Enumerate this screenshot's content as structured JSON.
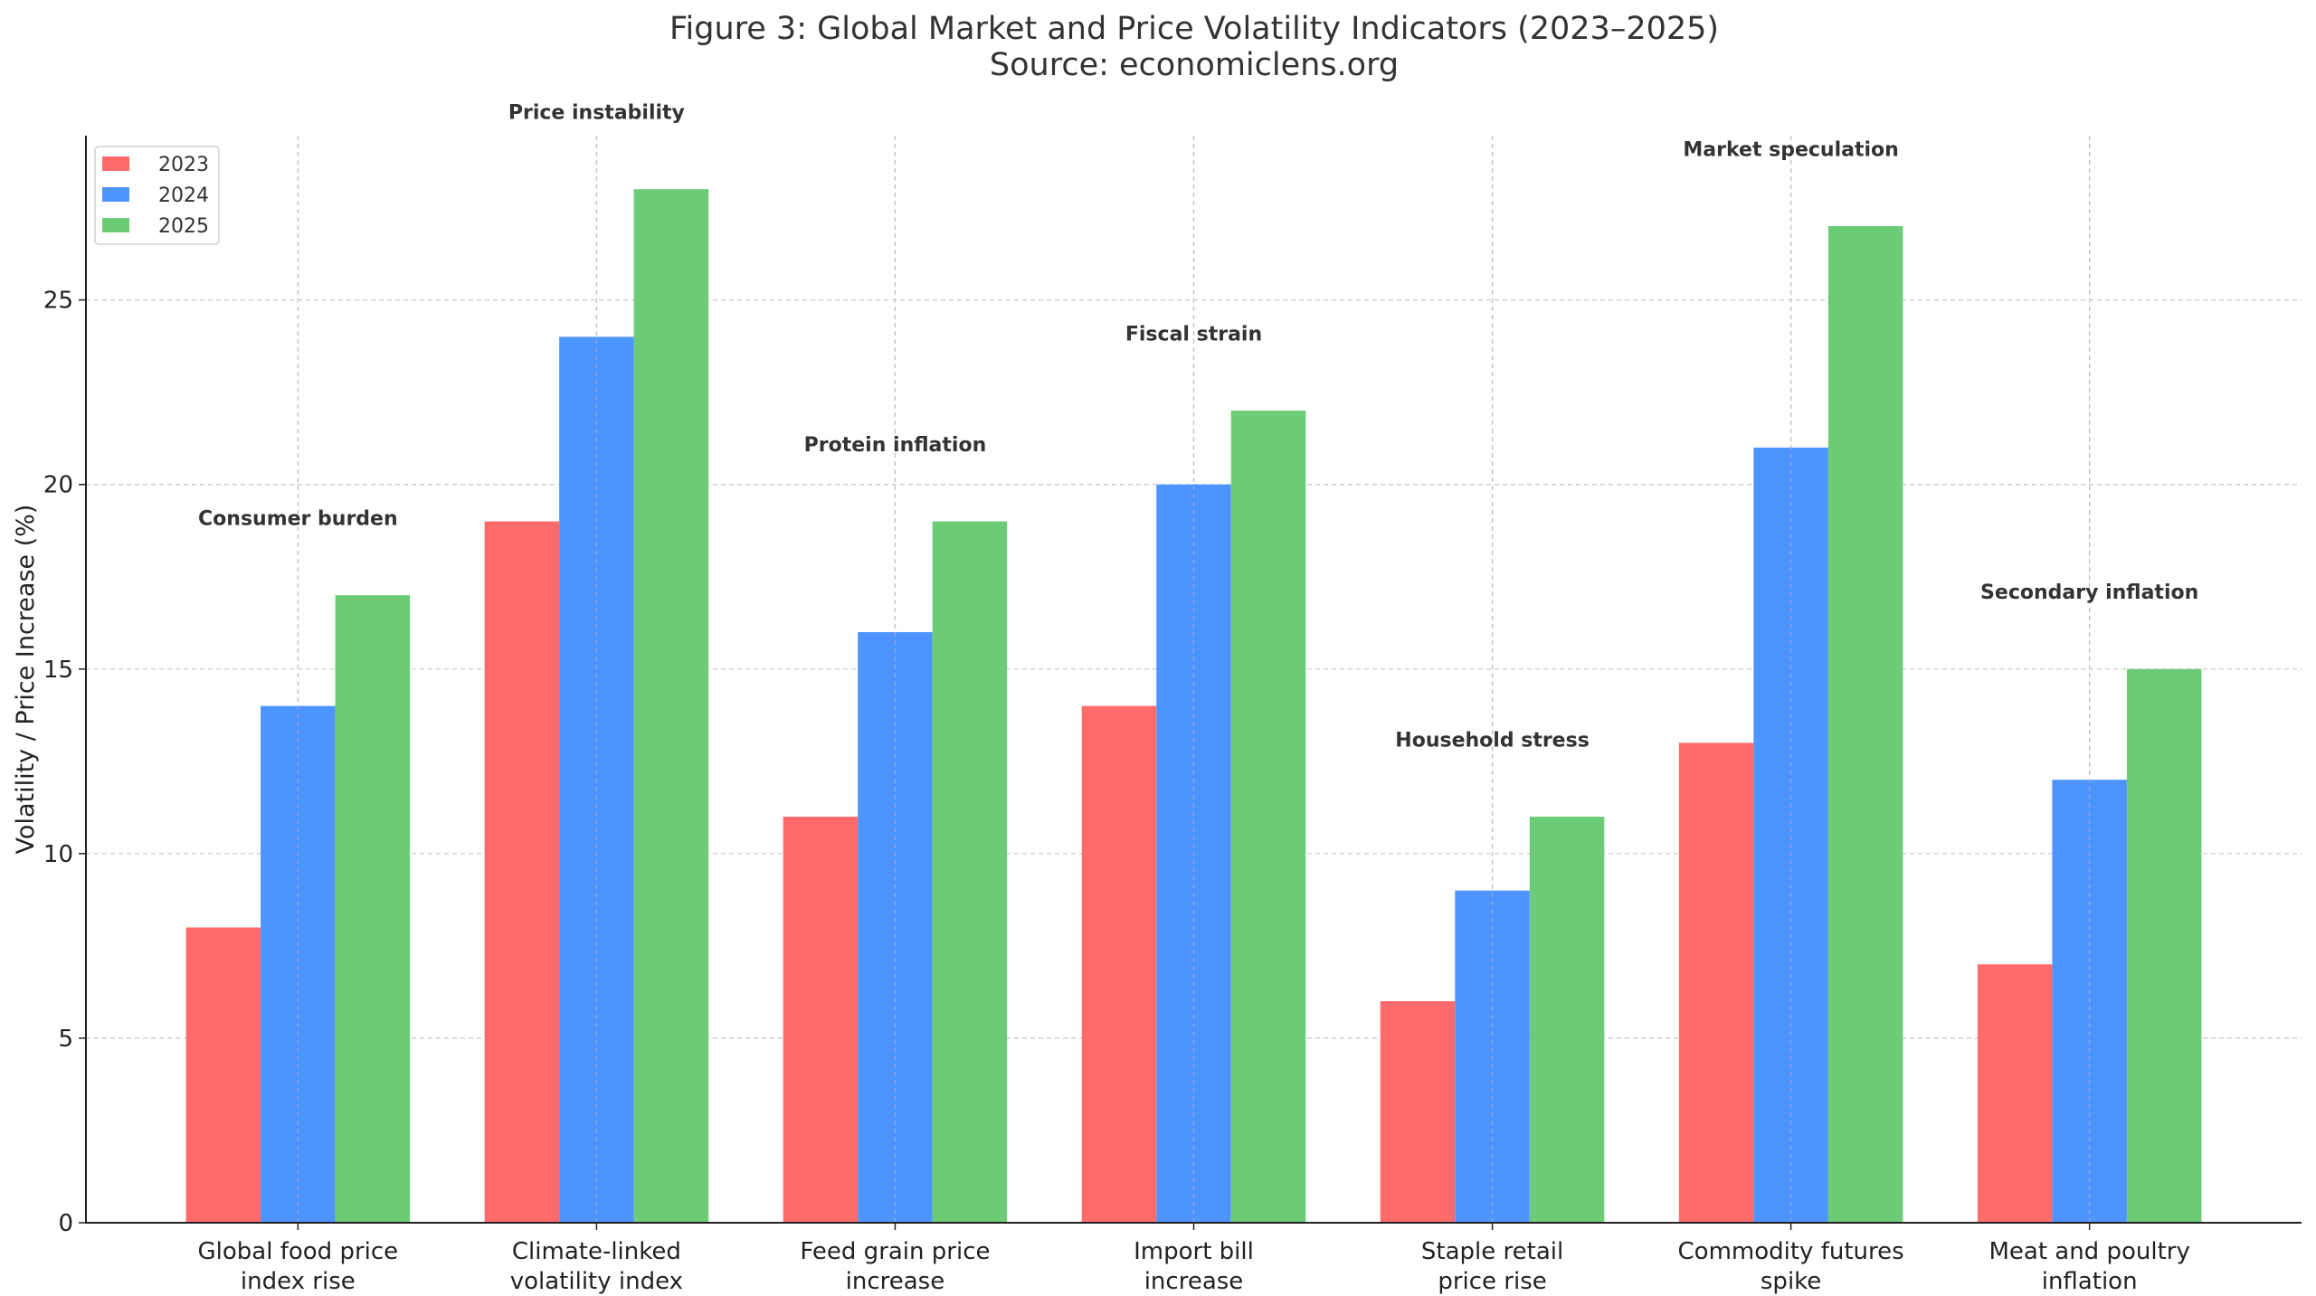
{
  "chart_data": {
    "type": "bar",
    "title": "Figure 3: Global Market and Price Volatility Indicators (2023–2025)",
    "subtitle": "Source: economiclens.org",
    "xlabel": "",
    "ylabel": "Volatility / Price Increase (%)",
    "categories": [
      [
        "Global food price",
        "index rise"
      ],
      [
        "Climate-linked",
        "volatility index"
      ],
      [
        "Feed grain price",
        "increase"
      ],
      [
        "Import bill",
        "increase"
      ],
      [
        "Staple retail",
        "price rise"
      ],
      [
        "Commodity futures",
        "spike"
      ],
      [
        "Meat and poultry",
        "inflation"
      ]
    ],
    "series": [
      {
        "name": "2023",
        "color": "#ff6b6b",
        "values": [
          8,
          19,
          11,
          14,
          6,
          13,
          7
        ]
      },
      {
        "name": "2024",
        "color": "#4d94ff",
        "values": [
          14,
          24,
          16,
          20,
          9,
          21,
          12
        ]
      },
      {
        "name": "2025",
        "color": "#6bcb77",
        "values": [
          17,
          28,
          19,
          22,
          11,
          27,
          15
        ]
      }
    ],
    "annotations": [
      "Consumer burden",
      "Price instability",
      "Protein inflation",
      "Fiscal strain",
      "Household stress",
      "Market speculation",
      "Secondary inflation"
    ],
    "yticks": [
      0,
      5,
      10,
      15,
      20,
      25
    ],
    "ylim": [
      0,
      29.45
    ],
    "grid": true,
    "legend_position": "top-left"
  }
}
